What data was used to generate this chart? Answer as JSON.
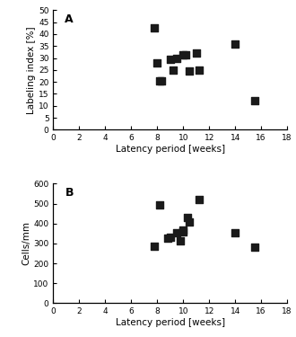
{
  "panel_A": {
    "label": "A",
    "x": [
      7.8,
      8.0,
      8.2,
      8.3,
      9.0,
      9.2,
      9.5,
      10.0,
      10.2,
      10.5,
      11.0,
      11.2,
      14.0,
      15.5
    ],
    "y": [
      42.5,
      28.0,
      20.5,
      20.5,
      29.5,
      25.0,
      30.0,
      31.5,
      31.5,
      24.5,
      32.0,
      25.0,
      36.0,
      12.0
    ],
    "xlabel": "Latency period [weeks]",
    "ylabel": "Labeling index [%]",
    "xlim": [
      0,
      18
    ],
    "ylim": [
      0,
      50
    ],
    "xticks": [
      0,
      2,
      4,
      6,
      8,
      10,
      12,
      14,
      16,
      18
    ],
    "yticks": [
      0,
      5,
      10,
      15,
      20,
      25,
      30,
      35,
      40,
      45,
      50
    ]
  },
  "panel_B": {
    "label": "B",
    "x": [
      7.8,
      8.2,
      8.8,
      9.0,
      9.5,
      9.8,
      10.0,
      10.0,
      10.3,
      10.5,
      11.2,
      14.0,
      15.5
    ],
    "y": [
      285,
      495,
      325,
      330,
      355,
      315,
      365,
      360,
      430,
      410,
      520,
      355,
      280
    ],
    "xlabel": "Latency period [weeks]",
    "ylabel": "Cells/mm",
    "xlim": [
      0,
      18
    ],
    "ylim": [
      0,
      600
    ],
    "xticks": [
      0,
      2,
      4,
      6,
      8,
      10,
      12,
      14,
      16,
      18
    ],
    "yticks": [
      0,
      100,
      200,
      300,
      400,
      500,
      600
    ]
  },
  "marker_color": "#1a1a1a",
  "marker_size": 28,
  "tick_fontsize": 6.5,
  "label_fontsize": 7.5,
  "panel_label_fontsize": 9
}
